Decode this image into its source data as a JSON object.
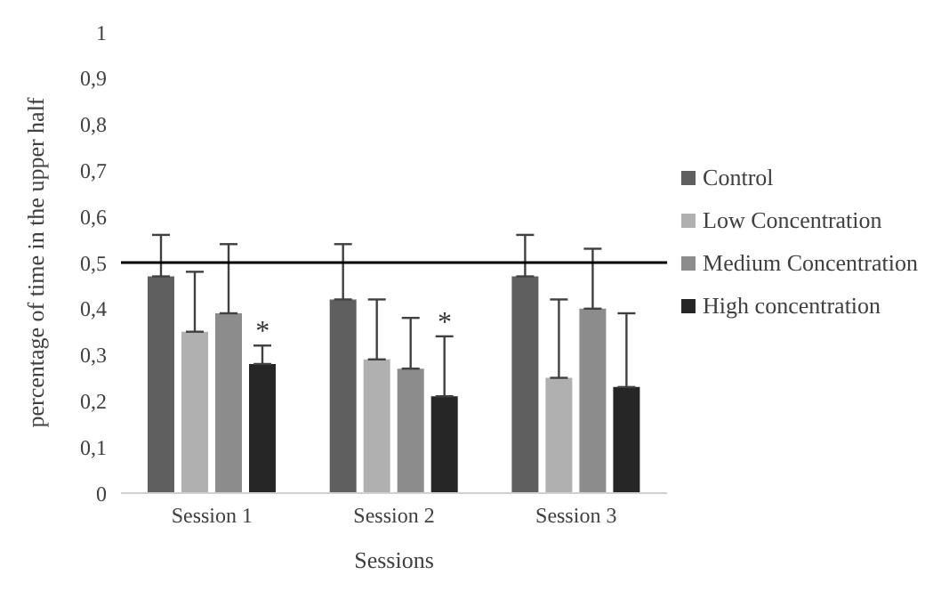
{
  "chart_data": {
    "type": "bar",
    "xlabel": "Sessions",
    "ylabel": "percentage of time in the upper half",
    "categories": [
      "Session 1",
      "Session 2",
      "Session 3"
    ],
    "series": [
      {
        "name": "Control",
        "color": "#5f5f5f",
        "values": [
          0.47,
          0.42,
          0.47
        ],
        "errors": [
          [
            0.47,
            0.56
          ],
          [
            0.42,
            0.54
          ],
          [
            0.47,
            0.56
          ]
        ]
      },
      {
        "name": "Low Concentration",
        "color": "#b0b0b0",
        "values": [
          0.35,
          0.29,
          0.25
        ],
        "errors": [
          [
            0.35,
            0.48
          ],
          [
            0.29,
            0.42
          ],
          [
            0.25,
            0.42
          ]
        ]
      },
      {
        "name": "Medium Concentration",
        "color": "#8c8c8c",
        "values": [
          0.39,
          0.27,
          0.4
        ],
        "errors": [
          [
            0.39,
            0.54
          ],
          [
            0.27,
            0.38
          ],
          [
            0.4,
            0.53
          ]
        ]
      },
      {
        "name": "High concentration",
        "color": "#262626",
        "values": [
          0.28,
          0.21,
          0.23
        ],
        "errors": [
          [
            0.28,
            0.32
          ],
          [
            0.21,
            0.34
          ],
          [
            0.23,
            0.39
          ]
        ]
      }
    ],
    "ylim": [
      0,
      1
    ],
    "yticks": [
      0,
      {
        "value": 0.1,
        "label": "0,1"
      },
      {
        "value": 0.2,
        "label": "0,2"
      },
      {
        "value": 0.3,
        "label": "0,3"
      },
      {
        "value": 0.4,
        "label": "0,4"
      },
      {
        "value": 0.5,
        "label": "0,5"
      },
      {
        "value": 0.6,
        "label": "0,6"
      },
      {
        "value": 0.7,
        "label": "0,7"
      },
      {
        "value": 0.8,
        "label": "0,8"
      },
      {
        "value": 0.9,
        "label": "0,9"
      },
      1
    ],
    "ref_lines": [
      {
        "axis": "y",
        "value": 0.5,
        "color": "#000000"
      }
    ],
    "annotations": [
      {
        "text": "*",
        "x": "Session 1",
        "y": 0.28
      },
      {
        "text": "*",
        "x": "Session 2",
        "y": 0.21
      }
    ],
    "grid": false,
    "legend": "right"
  }
}
